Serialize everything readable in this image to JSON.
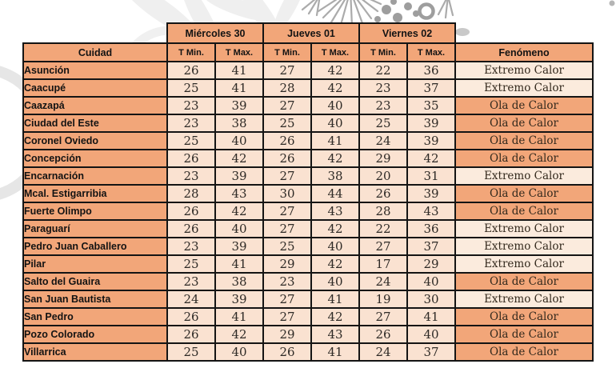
{
  "table": {
    "corner_label": "Cuidad",
    "fenomeno_label": "Fenómeno",
    "day_groups": [
      {
        "label": "Miércoles 30"
      },
      {
        "label": "Jueves 01"
      },
      {
        "label": "Viernes 02"
      }
    ],
    "sub_headers": [
      "T Min.",
      "T Max."
    ],
    "rows": [
      {
        "city": "Asunción",
        "temps": [
          26,
          41,
          27,
          42,
          22,
          36
        ],
        "fenomeno": "Extremo Calor"
      },
      {
        "city": "Caacupé",
        "temps": [
          25,
          41,
          28,
          42,
          23,
          37
        ],
        "fenomeno": "Extremo Calor"
      },
      {
        "city": "Caazapá",
        "temps": [
          23,
          39,
          27,
          40,
          23,
          35
        ],
        "fenomeno": "Ola de Calor"
      },
      {
        "city": "Ciudad del Este",
        "temps": [
          23,
          38,
          25,
          40,
          25,
          39
        ],
        "fenomeno": "Ola de Calor"
      },
      {
        "city": "Coronel Oviedo",
        "temps": [
          25,
          40,
          26,
          41,
          24,
          39
        ],
        "fenomeno": "Ola de Calor"
      },
      {
        "city": "Concepción",
        "temps": [
          26,
          42,
          26,
          42,
          29,
          42
        ],
        "fenomeno": "Ola de Calor"
      },
      {
        "city": "Encarnación",
        "temps": [
          23,
          39,
          27,
          38,
          20,
          31
        ],
        "fenomeno": "Extremo Calor"
      },
      {
        "city": "Mcal. Estigarribia",
        "temps": [
          28,
          43,
          30,
          44,
          26,
          39
        ],
        "fenomeno": "Ola de Calor"
      },
      {
        "city": "Fuerte Olimpo",
        "temps": [
          26,
          42,
          27,
          43,
          28,
          43
        ],
        "fenomeno": "Ola de Calor"
      },
      {
        "city": "Paraguarí",
        "temps": [
          26,
          40,
          27,
          42,
          22,
          36
        ],
        "fenomeno": "Extremo Calor"
      },
      {
        "city": "Pedro Juan Caballero",
        "temps": [
          23,
          39,
          25,
          40,
          27,
          37
        ],
        "fenomeno": "Extremo Calor"
      },
      {
        "city": "Pilar",
        "temps": [
          25,
          41,
          29,
          42,
          17,
          29
        ],
        "fenomeno": "Extremo Calor"
      },
      {
        "city": "Salto del Guaira",
        "temps": [
          23,
          38,
          23,
          40,
          24,
          40
        ],
        "fenomeno": "Ola de Calor"
      },
      {
        "city": "San Juan Bautista",
        "temps": [
          24,
          39,
          27,
          41,
          19,
          30
        ],
        "fenomeno": "Extremo Calor"
      },
      {
        "city": "San Pedro",
        "temps": [
          26,
          41,
          27,
          42,
          27,
          41
        ],
        "fenomeno": "Ola de Calor"
      },
      {
        "city": "Pozo Colorado",
        "temps": [
          26,
          42,
          29,
          43,
          26,
          40
        ],
        "fenomeno": "Ola de Calor"
      },
      {
        "city": "Villarrica",
        "temps": [
          25,
          40,
          26,
          41,
          24,
          37
        ],
        "fenomeno": "Ola de Calor"
      }
    ]
  },
  "colors": {
    "orange": "#F2A679",
    "row_light": "#FAE2D1",
    "fen_light": "#FBEBDD",
    "border": "#141414"
  }
}
